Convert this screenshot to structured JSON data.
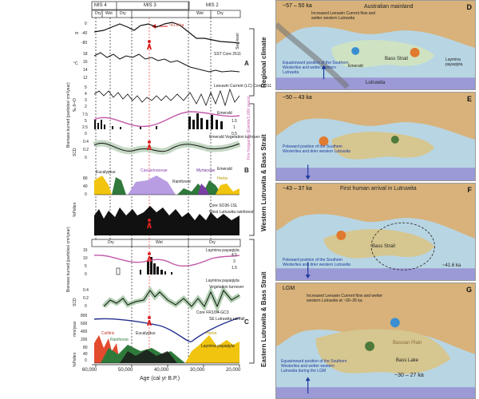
{
  "top_stages": [
    "MIS 4",
    "MIS 3",
    "MIS 2"
  ],
  "top_phases": [
    "Dry",
    "Wet",
    "Dry",
    "Wet",
    "Dry"
  ],
  "lower_phases": [
    "Dry",
    "Wet",
    "Dry"
  ],
  "marker_label": "~41.6 ka",
  "sections": {
    "regional": "Regional climate",
    "west": "Western Lutruwita & Bass Strait",
    "east": "Eastern Lutruwita & Bass Strait"
  },
  "panel_letters": {
    "A": "A",
    "B": "B",
    "C": "C",
    "D": "D",
    "E": "E",
    "F": "F",
    "G": "G"
  },
  "left_axis": {
    "sea_level_unit": "m",
    "sst_unit": "°C",
    "delta_unit": "‰ δ¹⁸O",
    "biomass_unit": "Biomass burned (particles/ cm²/year)",
    "scd_unit": "SCD",
    "pollen_unit": "%Pollen",
    "mm_unit": "mm/year"
  },
  "ticks_top": [
    "0",
    "-40",
    "-80",
    "18",
    "16",
    "14",
    "12",
    "5",
    "4",
    "3",
    "2",
    "7.5",
    "5",
    "2.5",
    "0",
    "0.4",
    "0.2",
    "0",
    "80",
    "40",
    "0"
  ],
  "ticks_bottom": [
    "15",
    "10",
    "5",
    "0",
    "0.4",
    "0.2",
    "0",
    "800",
    "600",
    "400",
    "200",
    "80",
    "40",
    "0"
  ],
  "right_labels": {
    "sea_level": "Sea level",
    "sst": "SST Core 2611",
    "leeuwin": "Leeuwin Current (LC) Core 2611",
    "emerald": "Emerald",
    "fire_freq": "Fire frequency (Events/1,000 years)",
    "fire_vals_top": [
      "1.5",
      "1",
      "0.5"
    ],
    "emerald_veg": "Emerald Vegetation turnover",
    "emerald2": "Emerald",
    "core": "Core SO36-1SL",
    "west_lutruwita": "West Lutruwita rainforest",
    "laymina1": "Laymina payaqiyta",
    "fire_vals_bottom": [
      "4.5",
      "3",
      "1.5"
    ],
    "laymina2": "Laymina payaqiyta",
    "veg_turnover": "Vegetation turnover",
    "core_fr": "Core FR1/94-GC3",
    "se_lutruwita": "SE Lutruwita rainfall",
    "laymina3": "Laymina payaqiyta"
  },
  "pollen_labels_top": [
    "Eucalyptus",
    "Casuarinaceae",
    "Myrtaceae",
    "Herbs",
    "Rainforest"
  ],
  "pollen_labels_bottom": [
    "Callitris",
    "Eucalyptus",
    "Rainforest",
    "Herbs"
  ],
  "x_axis": {
    "ticks": [
      "60,000",
      "50,000",
      "40,000",
      "30,000",
      "20,000"
    ],
    "label": "Age (cal yr B.P.)"
  },
  "maps": [
    {
      "letter": "D",
      "title": "~57 – 50 ka",
      "region": "Australian mainland",
      "notes": [
        "Increased Leeuwin Current flow and wetter western Lutruwita",
        "Equatorward position of the Southern Westerlies and wetter western Lutruwita",
        "Bass Strait",
        "Emerald",
        "Laymina payaqiyta",
        "Lutruwita"
      ]
    },
    {
      "letter": "E",
      "title": "~50 – 43 ka",
      "notes": [
        "Poleward position of the Southern Westerlies and drier western Lutruwita"
      ]
    },
    {
      "letter": "F",
      "title": "~43 – 37 ka",
      "subtitle": "First human arrival in Lutruwita",
      "notes": [
        "Bass Strait",
        "Poleward position of the Southern Westerlies and drier western Lutruwita",
        "~41.6 ka"
      ]
    },
    {
      "letter": "G",
      "title": "LGM",
      "notes": [
        "Increased Leeuwin Current flow and wetter western Lutruwita at ~30–26 ka",
        "Bassian Plain",
        "Bass Lake",
        "Equatorward position of the Southern Westerlies and wetter western Lutruwita during the LGM",
        "~30 – 27 ka"
      ]
    }
  ]
}
